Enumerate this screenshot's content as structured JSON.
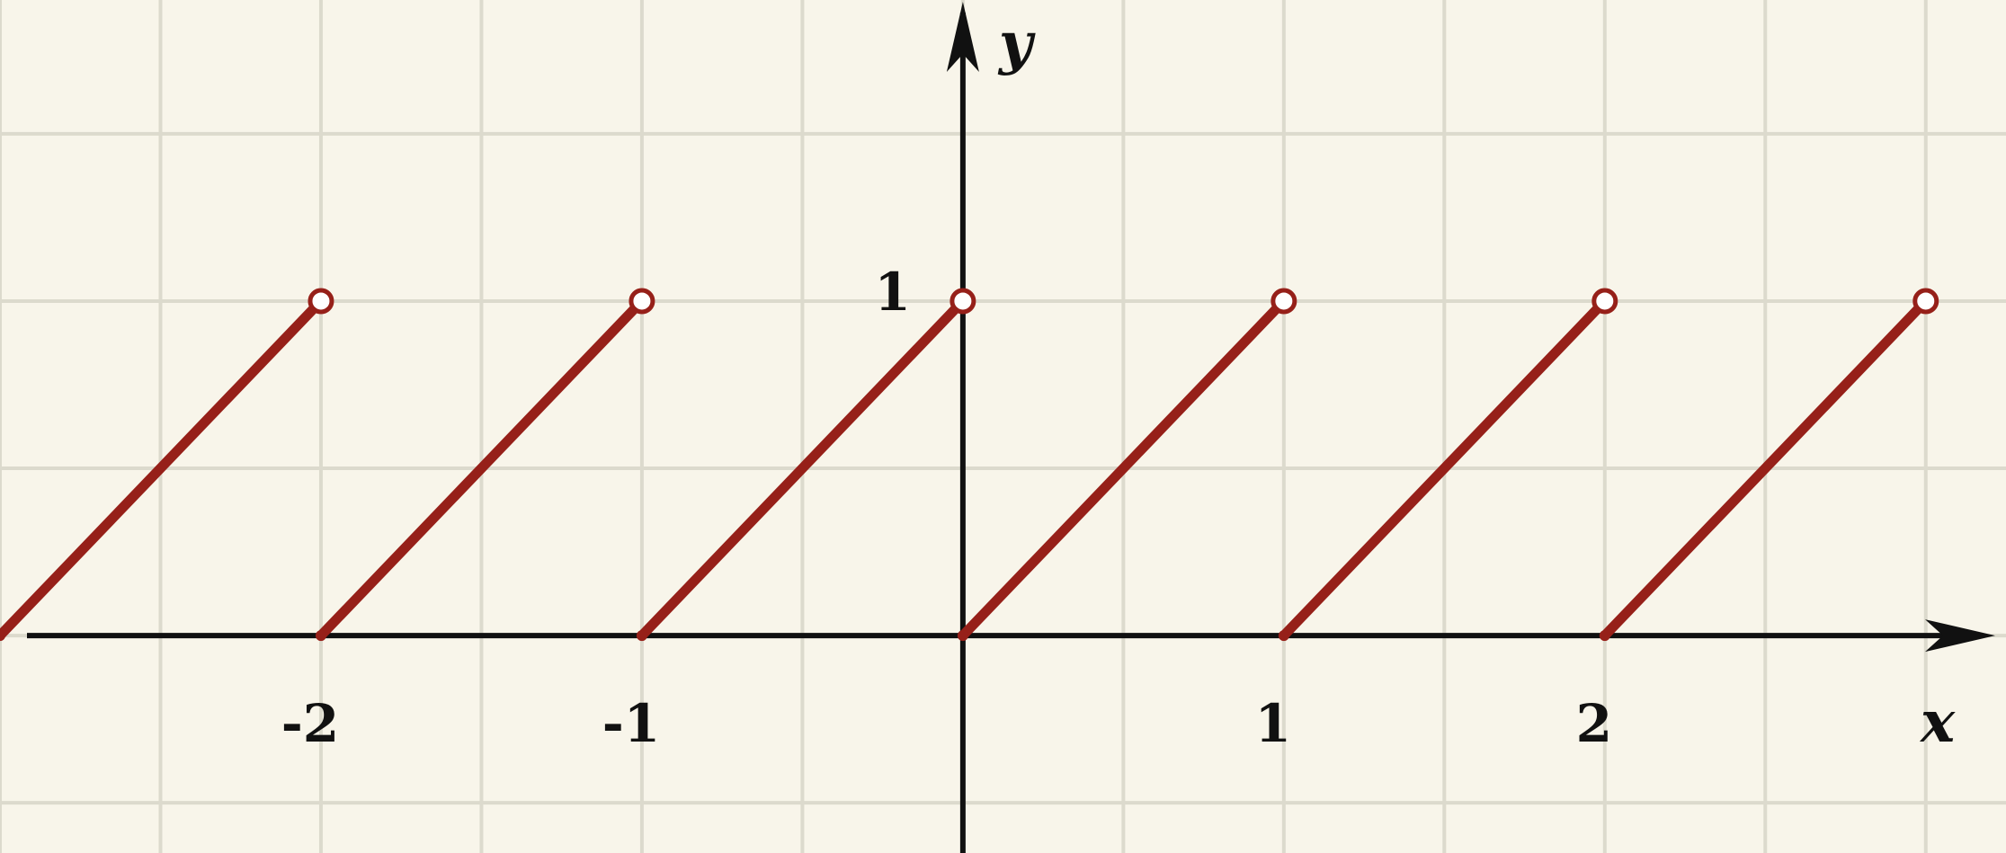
{
  "chart_data": {
    "type": "line",
    "title": "",
    "xlabel": "x",
    "ylabel": "y",
    "xlim": [
      -3.0,
      3.25
    ],
    "ylim": [
      -0.65,
      1.9
    ],
    "grid": true,
    "x_ticks": [
      {
        "value": -2,
        "label": "-2"
      },
      {
        "value": -1,
        "label": "-1"
      },
      {
        "value": 1,
        "label": "1"
      },
      {
        "value": 2,
        "label": "2"
      }
    ],
    "y_ticks": [
      {
        "value": 1,
        "label": "1"
      }
    ],
    "series": [
      {
        "segments": [
          {
            "start": [
              -3,
              0
            ],
            "end": [
              -2,
              1
            ],
            "closed_start": true,
            "open_end": true
          },
          {
            "start": [
              -2,
              0
            ],
            "end": [
              -1,
              1
            ],
            "closed_start": true,
            "open_end": true
          },
          {
            "start": [
              -1,
              0
            ],
            "end": [
              0,
              1
            ],
            "closed_start": true,
            "open_end": true
          },
          {
            "start": [
              0,
              0
            ],
            "end": [
              1,
              1
            ],
            "closed_start": true,
            "open_end": true
          },
          {
            "start": [
              1,
              0
            ],
            "end": [
              2,
              1
            ],
            "closed_start": true,
            "open_end": true
          },
          {
            "start": [
              2,
              0
            ],
            "end": [
              3,
              1
            ],
            "closed_start": true,
            "open_end": true
          }
        ]
      }
    ],
    "colors": {
      "background": "#f8f5ea",
      "grid": "#dcdacd",
      "axis": "#111111",
      "series": "#962019"
    }
  }
}
